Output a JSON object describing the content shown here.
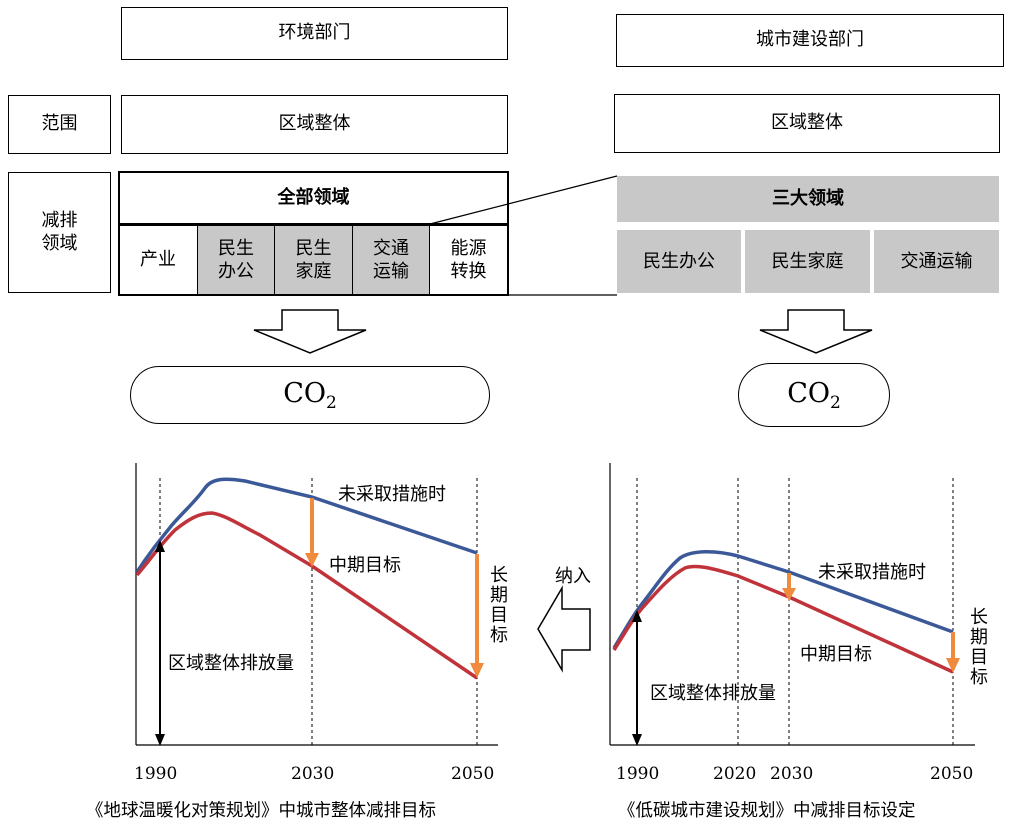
{
  "left": {
    "department": "环境部门",
    "scope": "区域整体",
    "area_title": "全部领域",
    "sectors": [
      "产业",
      "民生\n办公",
      "民生\n家庭",
      "交通\n运输",
      "能源\n转换"
    ],
    "co2_main": "CO",
    "co2_sub": "2",
    "chart": {
      "label_no_action": "未采取措施时",
      "label_mid": "中期目标",
      "label_long": "长\n期\n目\n标",
      "label_total": "区域整体排放量",
      "years": [
        "1990",
        "2030",
        "2050"
      ]
    },
    "caption": "《地球温暖化对策规划》中城市整体减排目标"
  },
  "right": {
    "department": "城市建设部门",
    "scope": "区域整体",
    "area_title": "三大领域",
    "sectors": [
      "民生办公",
      "民生家庭",
      "交通运输"
    ],
    "co2_main": "CO",
    "co2_sub": "2",
    "chart": {
      "label_no_action": "未采取措施时",
      "label_mid": "中期目标",
      "label_long": "长\n期\n目\n标",
      "label_total": "区域整体排放量",
      "years": [
        "1990",
        "2020",
        "2030",
        "2050"
      ]
    },
    "caption": "《低碳城市建设规划》中减排目标设定"
  },
  "row_labels": {
    "scope": "范围",
    "reduction": "减排\n领域"
  },
  "incorporate": "纳入",
  "colors": {
    "blue_line": "#3b5998",
    "red_line": "#c0333b",
    "arrow_orange": "#f08a3c",
    "grey_fill": "#c8c8c8"
  }
}
